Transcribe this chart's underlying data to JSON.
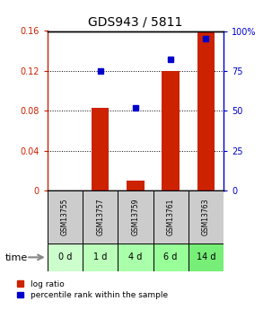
{
  "title": "GDS943 / 5811",
  "samples": [
    "GSM13755",
    "GSM13757",
    "GSM13759",
    "GSM13761",
    "GSM13763"
  ],
  "time_labels": [
    "0 d",
    "1 d",
    "4 d",
    "6 d",
    "14 d"
  ],
  "log_ratio": [
    0.0,
    0.083,
    0.01,
    0.12,
    0.16
  ],
  "percentile": [
    null,
    75.0,
    52.0,
    82.0,
    95.0
  ],
  "bar_color": "#cc2200",
  "dot_color": "#0000cc",
  "ylim_left": [
    0,
    0.16
  ],
  "ylim_right": [
    0,
    100
  ],
  "yticks_left": [
    0,
    0.04,
    0.08,
    0.12,
    0.16
  ],
  "ytick_labels_left": [
    "0",
    "0.04",
    "0.08",
    "0.12",
    "0.16"
  ],
  "yticks_right": [
    0,
    25,
    50,
    75,
    100
  ],
  "ytick_labels_right": [
    "0",
    "25",
    "50",
    "75",
    "100%"
  ],
  "sample_box_color": "#cccccc",
  "time_box_colors": [
    "#ccffcc",
    "#bbffbb",
    "#aaffaa",
    "#99ff99",
    "#77ee77"
  ],
  "bar_width": 0.5,
  "legend_labels": [
    "log ratio",
    "percentile rank within the sample"
  ],
  "xlabel_time": "time"
}
